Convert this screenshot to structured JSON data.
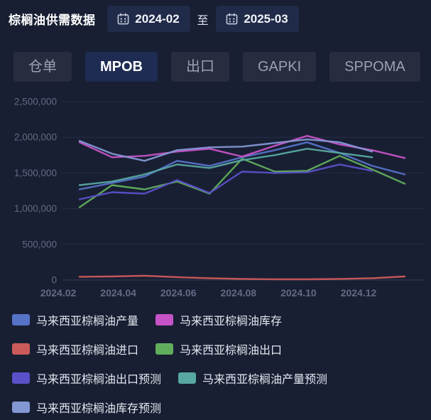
{
  "header": {
    "title": "棕榈油供需数据",
    "start_date": "2024-02",
    "range_separator": "至",
    "end_date": "2025-03"
  },
  "tabs": [
    {
      "id": "cangdan",
      "label": "仓单",
      "active": false
    },
    {
      "id": "mpob",
      "label": "MPOB",
      "active": true
    },
    {
      "id": "chukou",
      "label": "出口",
      "active": false
    },
    {
      "id": "gapki",
      "label": "GAPKI",
      "active": false
    },
    {
      "id": "sppoma",
      "label": "SPPOMA",
      "active": false
    }
  ],
  "chart_data": {
    "type": "line",
    "title": "",
    "x": [
      "2024.02",
      "2024.03",
      "2024.04",
      "2024.05",
      "2024.06",
      "2024.07",
      "2024.08",
      "2024.09",
      "2024.10",
      "2024.11",
      "2024.12"
    ],
    "x_tick_labels": [
      "2024.02",
      "2024.04",
      "2024.06",
      "2024.08",
      "2024.10",
      "2024.12"
    ],
    "y_ticks": [
      {
        "value": 0,
        "label": "0"
      },
      {
        "value": 500000,
        "label": "500,000"
      },
      {
        "value": 1000000,
        "label": "1,000,000"
      },
      {
        "value": 1500000,
        "label": "1,500,000"
      },
      {
        "value": 2000000,
        "label": "2,000,000"
      },
      {
        "value": 2500000,
        "label": "2,500,000"
      }
    ],
    "ylim": [
      0,
      2500000
    ],
    "grid": true,
    "legend_position": "bottom",
    "series": [
      {
        "key": "production",
        "name": "马来西亚棕榈油产量",
        "color": "#5673c8",
        "values": [
          1270000,
          1360000,
          1450000,
          1670000,
          1600000,
          1720000,
          1820000,
          1930000,
          1780000,
          1600000,
          1480000
        ]
      },
      {
        "key": "stock",
        "name": "马来西亚棕榈油库存",
        "color": "#c653c6",
        "values": [
          1930000,
          1720000,
          1740000,
          1800000,
          1840000,
          1730000,
          1880000,
          2020000,
          1900000,
          1820000,
          1710000
        ]
      },
      {
        "key": "import",
        "name": "马来西亚棕榈油进口",
        "color": "#cb5a5a",
        "values": [
          45000,
          50000,
          60000,
          40000,
          25000,
          15000,
          10000,
          10000,
          15000,
          25000,
          50000
        ]
      },
      {
        "key": "export",
        "name": "马来西亚棕榈油出口",
        "color": "#61ad5c",
        "values": [
          1020000,
          1330000,
          1270000,
          1380000,
          1210000,
          1700000,
          1520000,
          1530000,
          1740000,
          1550000,
          1350000
        ]
      },
      {
        "key": "export_forecast",
        "name": "马来西亚棕榈油出口预测",
        "color": "#5a50c8",
        "values": [
          1130000,
          1230000,
          1210000,
          1400000,
          1220000,
          1520000,
          1500000,
          1510000,
          1620000,
          1530000
        ]
      },
      {
        "key": "production_forecast",
        "name": "马来西亚棕榈油产量预测",
        "color": "#57a8a2",
        "values": [
          1330000,
          1380000,
          1480000,
          1620000,
          1570000,
          1680000,
          1750000,
          1840000,
          1780000,
          1720000
        ]
      },
      {
        "key": "stock_forecast",
        "name": "马来西亚棕榈油库存预测",
        "color": "#8397d3",
        "values": [
          1950000,
          1770000,
          1670000,
          1820000,
          1860000,
          1870000,
          1920000,
          1970000,
          1930000,
          1800000
        ]
      }
    ]
  },
  "colors": {
    "background": "#181f33",
    "grid_line": "#262d46",
    "zero_line": "#343c55",
    "axis_label": "#616b84",
    "tab_active_bg": "#1e2b52",
    "tab_inactive_bg": "#272d3e"
  }
}
